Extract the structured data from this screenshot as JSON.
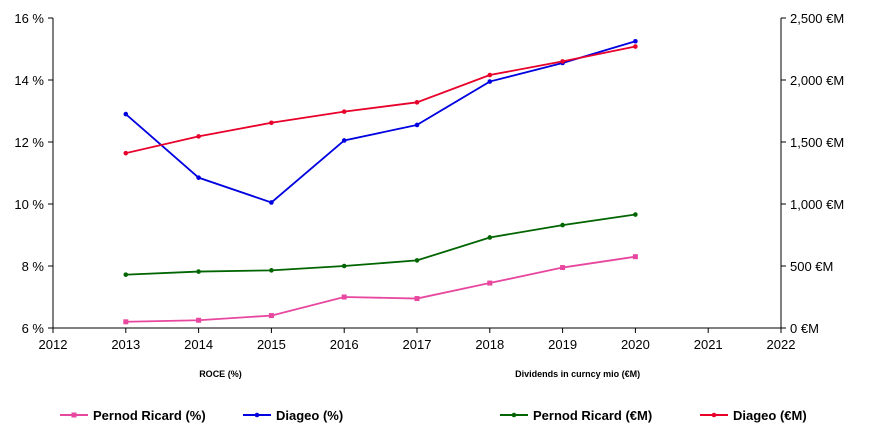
{
  "chart_data": {
    "type": "line",
    "x": [
      2013,
      2014,
      2015,
      2016,
      2017,
      2018,
      2019,
      2020
    ],
    "x_ticks": [
      "2012",
      "2013",
      "2014",
      "2015",
      "2016",
      "2017",
      "2018",
      "2019",
      "2020",
      "2021",
      "2022"
    ],
    "xlim": [
      2012,
      2022
    ],
    "y_left": {
      "label": "ROCE (%)",
      "lim": [
        6,
        16
      ],
      "ticks": [
        "6 %",
        "8 %",
        "10 %",
        "12 %",
        "14 %",
        "16 %"
      ],
      "tick_values": [
        6,
        8,
        10,
        12,
        14,
        16
      ]
    },
    "y_right": {
      "label": "Dividends in curncy mio (€M)",
      "lim": [
        0,
        2500
      ],
      "ticks": [
        "0 €M",
        "500 €M",
        "1,000 €M",
        "1,500 €M",
        "2,000 €M",
        "2,500 €M"
      ],
      "tick_values": [
        0,
        500,
        1000,
        1500,
        2000,
        2500
      ]
    },
    "grid": false,
    "legend_position": "bottom",
    "series": [
      {
        "name": "Pernod Ricard (%)",
        "axis": "left",
        "color": "#e8479f",
        "marker": "square",
        "values": [
          6.2,
          6.25,
          6.4,
          7.0,
          6.95,
          7.45,
          7.95,
          8.3
        ]
      },
      {
        "name": "Diageo (%)",
        "axis": "left",
        "color": "#0000e0",
        "marker": "dot",
        "values": [
          12.9,
          10.85,
          10.05,
          12.05,
          12.55,
          13.95,
          14.55,
          15.25
        ]
      },
      {
        "name": "Pernod Ricard (€M)",
        "axis": "right",
        "color": "#006400",
        "marker": "dot",
        "values": [
          430,
          455,
          465,
          500,
          545,
          730,
          830,
          915
        ]
      },
      {
        "name": "Diageo (€M)",
        "axis": "right",
        "color": "#e8002a",
        "marker": "dot",
        "values": [
          1410,
          1545,
          1655,
          1745,
          1820,
          2040,
          2150,
          2270
        ]
      }
    ]
  }
}
